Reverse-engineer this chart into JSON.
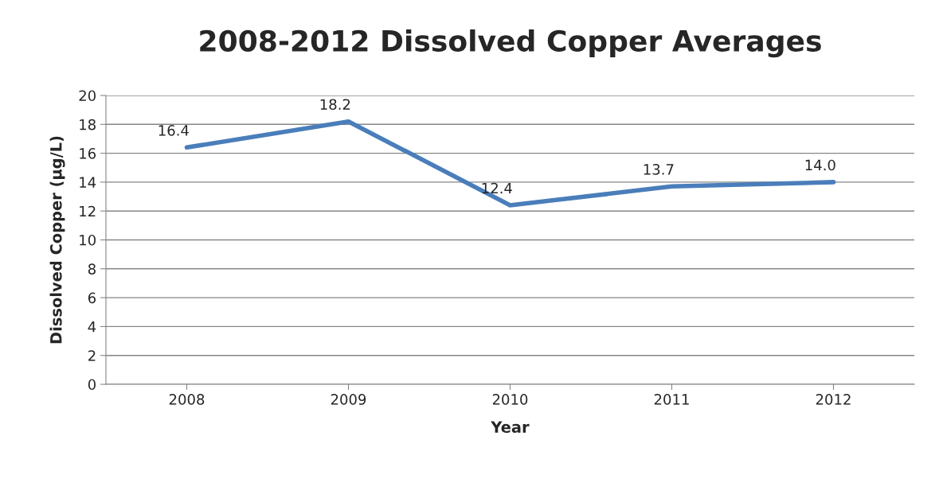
{
  "chart_data": {
    "type": "line",
    "title": "2008-2012 Dissolved Copper Averages",
    "xlabel": "Year",
    "ylabel": "Dissolved Copper (µg/L)",
    "categories": [
      "2008",
      "2009",
      "2010",
      "2011",
      "2012"
    ],
    "series": [
      {
        "color": "#4a7ebb",
        "values": [
          16.4,
          18.2,
          12.4,
          13.7,
          14.0
        ],
        "value_labels": [
          "16.4",
          "18.2",
          "12.4",
          "13.7",
          "14.0"
        ]
      }
    ],
    "ylim": [
      0,
      20
    ],
    "yticks": [
      0,
      2,
      4,
      6,
      8,
      10,
      12,
      14,
      16,
      18,
      20
    ],
    "grid": "y",
    "marker": "none",
    "line_style": "solid",
    "legend": false
  }
}
